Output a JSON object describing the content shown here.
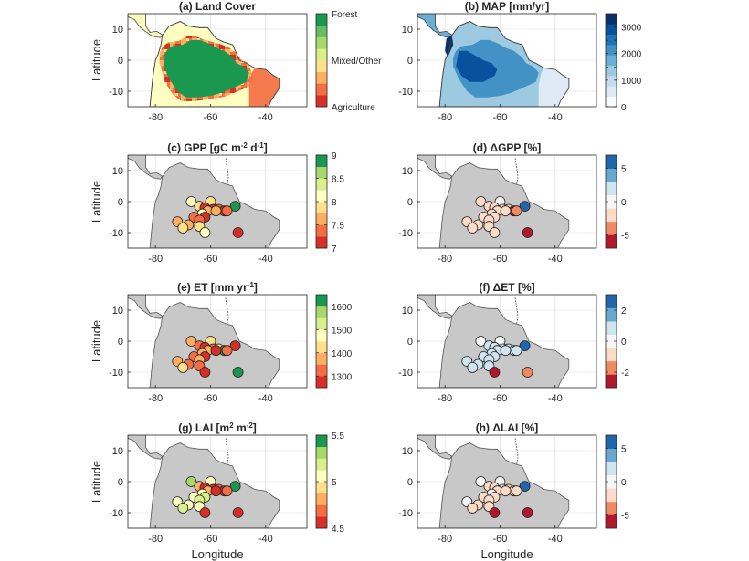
{
  "chart_data": [
    {
      "id": "a",
      "type": "heatmap",
      "title": "(a) Land Cover",
      "title_parts": [
        "(a) Land Cover"
      ],
      "xlabel": "",
      "ylabel": "Latitude",
      "xlim": [
        -90,
        -25
      ],
      "ylim": [
        -15,
        15
      ],
      "xticks": [
        -80,
        -60,
        -40
      ],
      "yticks": [
        10,
        0,
        -10
      ],
      "map_kind": "landcover",
      "colorbar": {
        "type": "categorical",
        "colors": [
          "#d62f27",
          "#f46d43",
          "#fdae61",
          "#fee08b",
          "#d9ef8b",
          "#a6d96a",
          "#66bd63",
          "#1a9850"
        ],
        "labels": [
          {
            "value": "Forest",
            "level": 1.0
          },
          {
            "value": "Mixed/Other",
            "level": 0.5
          },
          {
            "value": "Agriculture",
            "level": 0.0
          }
        ]
      }
    },
    {
      "id": "b",
      "type": "heatmap",
      "title": "(b) MAP [mm/yr]",
      "title_parts": [
        "(b) MAP [mm/yr]"
      ],
      "xlabel": "",
      "ylabel": "",
      "xlim": [
        -90,
        -25
      ],
      "ylim": [
        -15,
        15
      ],
      "xticks": [
        -80,
        -60,
        -40
      ],
      "yticks": [
        10,
        0,
        -10
      ],
      "map_kind": "precip",
      "colorbar": {
        "type": "continuous",
        "range": [
          0,
          3500
        ],
        "colors": [
          "#f7fbff",
          "#deebf7",
          "#c6dbef",
          "#9ecae1",
          "#6baed6",
          "#4292c6",
          "#2171b5",
          "#08519c",
          "#08306b"
        ],
        "ticks": [
          0,
          1000,
          1500,
          2000,
          2500,
          3000
        ],
        "tick_labels": [
          "0",
          "1000",
          "",
          "2000",
          "",
          "3000"
        ]
      }
    },
    {
      "id": "c",
      "type": "scatter",
      "title": "(c) GPP [gC m-2 d-1]",
      "title_parts": [
        "(c) GPP [gC m",
        "-2",
        " d",
        "-1",
        "]"
      ],
      "xlabel": "",
      "ylabel": "Latitude",
      "xlim": [
        -90,
        -25
      ],
      "ylim": [
        -15,
        15
      ],
      "xticks": [
        -80,
        -60,
        -40
      ],
      "yticks": [
        10,
        0,
        -10
      ],
      "colorbar": {
        "type": "discrete",
        "range": [
          7,
          9
        ],
        "colors": [
          "#d62f27",
          "#f46d43",
          "#fdae61",
          "#fee08b",
          "#ffffbf",
          "#d9ef8b",
          "#a6d96a",
          "#1a9850"
        ],
        "ticks": [
          7,
          7.5,
          8,
          8.5,
          9
        ],
        "tick_labels": [
          "7",
          "7.5",
          "8",
          "8.5",
          "9"
        ]
      },
      "points": [
        {
          "lon": -67,
          "lat": 0,
          "v": 8.1
        },
        {
          "lon": -60,
          "lat": 0,
          "v": 7.9
        },
        {
          "lon": -51,
          "lat": -1.5,
          "v": 8.9
        },
        {
          "lon": -64,
          "lat": -1.5,
          "v": 7.8
        },
        {
          "lon": -62,
          "lat": -2,
          "v": 7.1
        },
        {
          "lon": -59,
          "lat": -2.5,
          "v": 7.2
        },
        {
          "lon": -57,
          "lat": -2.5,
          "v": 7.3
        },
        {
          "lon": -55,
          "lat": -3,
          "v": 7.05
        },
        {
          "lon": -54,
          "lat": -3,
          "v": 7.4
        },
        {
          "lon": -61,
          "lat": -3,
          "v": 7.6
        },
        {
          "lon": -63,
          "lat": -4,
          "v": 8.05
        },
        {
          "lon": -58,
          "lat": -3,
          "v": 7.7
        },
        {
          "lon": -66,
          "lat": -5,
          "v": 7.4
        },
        {
          "lon": -62,
          "lat": -5,
          "v": 7.2
        },
        {
          "lon": -64,
          "lat": -6,
          "v": 7.3
        },
        {
          "lon": -72,
          "lat": -6.5,
          "v": 7.5
        },
        {
          "lon": -68,
          "lat": -7.5,
          "v": 7.6
        },
        {
          "lon": -64,
          "lat": -8,
          "v": 7.9
        },
        {
          "lon": -70,
          "lat": -8.5,
          "v": 7.8
        },
        {
          "lon": -62,
          "lat": -10,
          "v": 8.0
        },
        {
          "lon": -50,
          "lat": -10,
          "v": 7.0
        }
      ]
    },
    {
      "id": "d",
      "type": "scatter",
      "title": "(d) ΔGPP [%]",
      "title_parts": [
        "(d) ΔGPP [%]"
      ],
      "xlabel": "",
      "ylabel": "",
      "xlim": [
        -90,
        -25
      ],
      "ylim": [
        -15,
        15
      ],
      "xticks": [
        -80,
        -60,
        -40
      ],
      "yticks": [
        10,
        0,
        -10
      ],
      "colorbar": {
        "type": "discrete",
        "range": [
          -7,
          7
        ],
        "colors": [
          "#b2182b",
          "#ef8a62",
          "#fddbc7",
          "#f7f7f7",
          "#d1e5f0",
          "#67a9cf",
          "#2166ac"
        ],
        "ticks": [
          -5,
          0,
          5
        ],
        "tick_labels": [
          "-5",
          "0",
          "5"
        ]
      },
      "points": [
        {
          "lon": -67,
          "lat": 0,
          "v": -1.5
        },
        {
          "lon": -60,
          "lat": 0,
          "v": -1
        },
        {
          "lon": -51,
          "lat": -1.5,
          "v": 6.5
        },
        {
          "lon": -64,
          "lat": -1.5,
          "v": -1.5
        },
        {
          "lon": -62,
          "lat": -2,
          "v": -2
        },
        {
          "lon": -59,
          "lat": -2.5,
          "v": -2.5
        },
        {
          "lon": -57,
          "lat": -2.5,
          "v": -3
        },
        {
          "lon": -55,
          "lat": -3,
          "v": -6.5
        },
        {
          "lon": -54,
          "lat": -3,
          "v": -4
        },
        {
          "lon": -61,
          "lat": -3,
          "v": -2
        },
        {
          "lon": -63,
          "lat": -4,
          "v": -1.5
        },
        {
          "lon": -58,
          "lat": -3,
          "v": -2
        },
        {
          "lon": -66,
          "lat": -5,
          "v": -1.5
        },
        {
          "lon": -62,
          "lat": -5,
          "v": -2
        },
        {
          "lon": -64,
          "lat": -6,
          "v": -1.5
        },
        {
          "lon": -72,
          "lat": -6.5,
          "v": -1.5
        },
        {
          "lon": -68,
          "lat": -7.5,
          "v": -1.5
        },
        {
          "lon": -64,
          "lat": -8,
          "v": -1.5
        },
        {
          "lon": -70,
          "lat": -8.5,
          "v": -1.5
        },
        {
          "lon": -62,
          "lat": -10,
          "v": -1.5
        },
        {
          "lon": -50,
          "lat": -10,
          "v": -6
        }
      ]
    },
    {
      "id": "e",
      "type": "scatter",
      "title": "(e) ET [mm yr-1]",
      "title_parts": [
        "(e) ET [mm yr",
        "-1",
        "]"
      ],
      "xlabel": "",
      "ylabel": "Latitude",
      "xlim": [
        -90,
        -25
      ],
      "ylim": [
        -15,
        15
      ],
      "xticks": [
        -80,
        -60,
        -40
      ],
      "yticks": [
        10,
        0,
        -10
      ],
      "colorbar": {
        "type": "discrete",
        "range": [
          1250,
          1650
        ],
        "colors": [
          "#d62f27",
          "#f46d43",
          "#fdae61",
          "#fee08b",
          "#ffffbf",
          "#d9ef8b",
          "#a6d96a",
          "#1a9850"
        ],
        "ticks": [
          1300,
          1400,
          1500,
          1600
        ],
        "tick_labels": [
          "1300",
          "1400",
          "1500",
          "1600"
        ]
      },
      "points": [
        {
          "lon": -67,
          "lat": 0,
          "v": 1390
        },
        {
          "lon": -60,
          "lat": 0,
          "v": 1410
        },
        {
          "lon": -51,
          "lat": -1.5,
          "v": 1270
        },
        {
          "lon": -64,
          "lat": -1.5,
          "v": 1340
        },
        {
          "lon": -62,
          "lat": -2,
          "v": 1270
        },
        {
          "lon": -59,
          "lat": -2.5,
          "v": 1300
        },
        {
          "lon": -57,
          "lat": -2.5,
          "v": 1430
        },
        {
          "lon": -55,
          "lat": -3,
          "v": 1620
        },
        {
          "lon": -54,
          "lat": -3,
          "v": 1310
        },
        {
          "lon": -61,
          "lat": -3,
          "v": 1350
        },
        {
          "lon": -63,
          "lat": -4,
          "v": 1380
        },
        {
          "lon": -58,
          "lat": -3,
          "v": 1270
        },
        {
          "lon": -66,
          "lat": -5,
          "v": 1340
        },
        {
          "lon": -62,
          "lat": -5,
          "v": 1290
        },
        {
          "lon": -64,
          "lat": -6,
          "v": 1360
        },
        {
          "lon": -72,
          "lat": -6.5,
          "v": 1380
        },
        {
          "lon": -68,
          "lat": -7.5,
          "v": 1330
        },
        {
          "lon": -64,
          "lat": -8,
          "v": 1310
        },
        {
          "lon": -70,
          "lat": -8.5,
          "v": 1400
        },
        {
          "lon": -62,
          "lat": -10,
          "v": 1270
        },
        {
          "lon": -50,
          "lat": -10,
          "v": 1610
        }
      ]
    },
    {
      "id": "f",
      "type": "scatter",
      "title": "(f) ΔET [%]",
      "title_parts": [
        "(f) ΔET [%]"
      ],
      "xlabel": "",
      "ylabel": "",
      "xlim": [
        -90,
        -25
      ],
      "ylim": [
        -15,
        15
      ],
      "xticks": [
        -80,
        -60,
        -40
      ],
      "yticks": [
        10,
        0,
        -10
      ],
      "colorbar": {
        "type": "discrete",
        "range": [
          -3,
          3
        ],
        "colors": [
          "#b2182b",
          "#ef8a62",
          "#fddbc7",
          "#f7f7f7",
          "#d1e5f0",
          "#67a9cf",
          "#2166ac"
        ],
        "ticks": [
          -2,
          0,
          2
        ],
        "tick_labels": [
          "-2",
          "0",
          "2"
        ]
      },
      "points": [
        {
          "lon": -67,
          "lat": 0,
          "v": 0.2
        },
        {
          "lon": -60,
          "lat": 0,
          "v": 0.3
        },
        {
          "lon": -51,
          "lat": -1.5,
          "v": 2.8
        },
        {
          "lon": -64,
          "lat": -1.5,
          "v": 0.5
        },
        {
          "lon": -62,
          "lat": -2,
          "v": 0.6
        },
        {
          "lon": -59,
          "lat": -2.5,
          "v": 0.5
        },
        {
          "lon": -57,
          "lat": -2.5,
          "v": 0.6
        },
        {
          "lon": -55,
          "lat": -3,
          "v": 1.0
        },
        {
          "lon": -54,
          "lat": -3,
          "v": 0.7
        },
        {
          "lon": -61,
          "lat": -3,
          "v": 0.6
        },
        {
          "lon": -63,
          "lat": -4,
          "v": 0.5
        },
        {
          "lon": -58,
          "lat": -3,
          "v": 0.6
        },
        {
          "lon": -66,
          "lat": -5,
          "v": 0.5
        },
        {
          "lon": -62,
          "lat": -5,
          "v": 0.6
        },
        {
          "lon": -64,
          "lat": -6,
          "v": 0.5
        },
        {
          "lon": -72,
          "lat": -6.5,
          "v": 0.5
        },
        {
          "lon": -68,
          "lat": -7.5,
          "v": 0.6
        },
        {
          "lon": -64,
          "lat": -8,
          "v": 0.5
        },
        {
          "lon": -70,
          "lat": -8.5,
          "v": 0.6
        },
        {
          "lon": -62,
          "lat": -10,
          "v": -2.6
        },
        {
          "lon": -50,
          "lat": -10,
          "v": -1.5
        }
      ]
    },
    {
      "id": "g",
      "type": "scatter",
      "title": "(g) LAI [m2 m-2]",
      "title_parts": [
        "(g) LAI [m",
        "2",
        " m",
        "-2",
        "]"
      ],
      "xlabel": "Longitude",
      "ylabel": "Latitude",
      "xlim": [
        -90,
        -25
      ],
      "ylim": [
        -15,
        15
      ],
      "xticks": [
        -80,
        -60,
        -40
      ],
      "yticks": [
        10,
        0,
        -10
      ],
      "colorbar": {
        "type": "discrete",
        "range": [
          4.5,
          5.5
        ],
        "colors": [
          "#d62f27",
          "#f46d43",
          "#fdae61",
          "#fee08b",
          "#ffffbf",
          "#d9ef8b",
          "#a6d96a",
          "#1a9850"
        ],
        "ticks": [
          4.5,
          5,
          5.5
        ],
        "tick_labels": [
          "4.5",
          "5",
          "5.5"
        ]
      },
      "points": [
        {
          "lon": -67,
          "lat": 0,
          "v": 5.25
        },
        {
          "lon": -60,
          "lat": 0,
          "v": 5.1
        },
        {
          "lon": -51,
          "lat": -1.5,
          "v": 5.45
        },
        {
          "lon": -64,
          "lat": -1.5,
          "v": 4.8
        },
        {
          "lon": -62,
          "lat": -2,
          "v": 4.6
        },
        {
          "lon": -59,
          "lat": -2.5,
          "v": 4.6
        },
        {
          "lon": -57,
          "lat": -2.5,
          "v": 4.7
        },
        {
          "lon": -55,
          "lat": -3,
          "v": 4.55
        },
        {
          "lon": -54,
          "lat": -3,
          "v": 4.65
        },
        {
          "lon": -61,
          "lat": -3,
          "v": 4.75
        },
        {
          "lon": -63,
          "lat": -4,
          "v": 5.05
        },
        {
          "lon": -58,
          "lat": -3,
          "v": 4.6
        },
        {
          "lon": -66,
          "lat": -5,
          "v": 5.1
        },
        {
          "lon": -62,
          "lat": -5,
          "v": 5.2
        },
        {
          "lon": -64,
          "lat": -6,
          "v": 5.15
        },
        {
          "lon": -72,
          "lat": -6.5,
          "v": 5.05
        },
        {
          "lon": -68,
          "lat": -7.5,
          "v": 5.1
        },
        {
          "lon": -64,
          "lat": -8,
          "v": 5.0
        },
        {
          "lon": -70,
          "lat": -8.5,
          "v": 5.15
        },
        {
          "lon": -62,
          "lat": -10,
          "v": 4.6
        },
        {
          "lon": -50,
          "lat": -10,
          "v": 4.55
        }
      ]
    },
    {
      "id": "h",
      "type": "scatter",
      "title": "(h) ΔLAI [%]",
      "title_parts": [
        "(h) ΔLAI [%]"
      ],
      "xlabel": "Longitude",
      "ylabel": "",
      "xlim": [
        -90,
        -25
      ],
      "ylim": [
        -15,
        15
      ],
      "xticks": [
        -80,
        -60,
        -40
      ],
      "yticks": [
        10,
        0,
        -10
      ],
      "colorbar": {
        "type": "discrete",
        "range": [
          -7,
          7
        ],
        "colors": [
          "#b2182b",
          "#ef8a62",
          "#fddbc7",
          "#f7f7f7",
          "#d1e5f0",
          "#67a9cf",
          "#2166ac"
        ],
        "ticks": [
          -5,
          0,
          5
        ],
        "tick_labels": [
          "-5",
          "0",
          "5"
        ]
      },
      "points": [
        {
          "lon": -67,
          "lat": 0,
          "v": 0
        },
        {
          "lon": -60,
          "lat": 0,
          "v": 0.3
        },
        {
          "lon": -51,
          "lat": -1.5,
          "v": 6.5
        },
        {
          "lon": -64,
          "lat": -1.5,
          "v": -1.5
        },
        {
          "lon": -62,
          "lat": -2,
          "v": -1.5
        },
        {
          "lon": -59,
          "lat": -2.5,
          "v": -1.5
        },
        {
          "lon": -57,
          "lat": -2.5,
          "v": -1.5
        },
        {
          "lon": -55,
          "lat": -3,
          "v": -2
        },
        {
          "lon": -54,
          "lat": -3,
          "v": -1.5
        },
        {
          "lon": -61,
          "lat": -3,
          "v": -1.5
        },
        {
          "lon": -63,
          "lat": -4,
          "v": -0.5
        },
        {
          "lon": -58,
          "lat": -3,
          "v": -1.5
        },
        {
          "lon": -66,
          "lat": -5,
          "v": -1.5
        },
        {
          "lon": -62,
          "lat": -5,
          "v": -1.5
        },
        {
          "lon": -64,
          "lat": -6,
          "v": -1.5
        },
        {
          "lon": -72,
          "lat": -6.5,
          "v": 0.5
        },
        {
          "lon": -68,
          "lat": -7.5,
          "v": -1.5
        },
        {
          "lon": -64,
          "lat": -8,
          "v": -1.5
        },
        {
          "lon": -70,
          "lat": -8.5,
          "v": -1.5
        },
        {
          "lon": -62,
          "lat": -10,
          "v": -6.5
        },
        {
          "lon": -50,
          "lat": -10,
          "v": -6
        }
      ]
    }
  ],
  "style": {
    "land_color": "#c8c8c8",
    "ocean_color": "#ffffff",
    "grid_color": "#d9d9d9",
    "forest_color": "#1a9850",
    "savanna_color": "#fefec0",
    "rim_color": "#f46d43"
  }
}
